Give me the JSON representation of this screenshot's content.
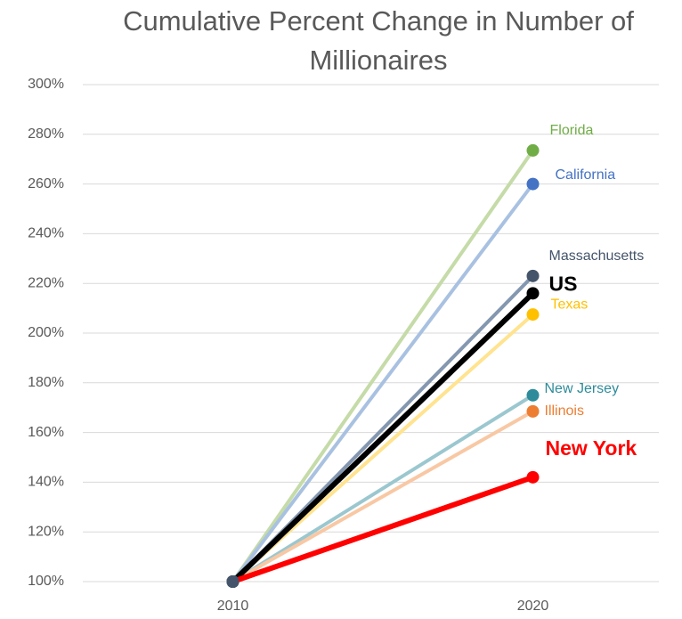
{
  "chart_data": {
    "type": "line",
    "title": "Cumulative Percent Change in Number of Millionaires",
    "categories": [
      "2010",
      "2020"
    ],
    "ylim": [
      100,
      300
    ],
    "yticks": [
      {
        "value": 100,
        "label": "100%"
      },
      {
        "value": 120,
        "label": "120%"
      },
      {
        "value": 140,
        "label": "140%"
      },
      {
        "value": 160,
        "label": "160%"
      },
      {
        "value": 180,
        "label": "180%"
      },
      {
        "value": 200,
        "label": "200%"
      },
      {
        "value": 220,
        "label": "220%"
      },
      {
        "value": 240,
        "label": "240%"
      },
      {
        "value": 260,
        "label": "260%"
      },
      {
        "value": 280,
        "label": "280%"
      },
      {
        "value": 300,
        "label": "300%"
      }
    ],
    "grid": true,
    "series": [
      {
        "name": "Florida",
        "color": "#c5dba8",
        "marker_color": "#70ad47",
        "values": [
          100,
          273.5
        ]
      },
      {
        "name": "California",
        "color": "#a9c1e1",
        "marker_color": "#4472c4",
        "values": [
          100,
          260
        ]
      },
      {
        "name": "Texas",
        "color": "#ffe38f",
        "marker_color": "#ffc000",
        "values": [
          100,
          207.5
        ]
      },
      {
        "name": "New Jersey",
        "color": "#9bc7cf",
        "marker_color": "#2e8b9a",
        "values": [
          100,
          175
        ]
      },
      {
        "name": "Illinois",
        "color": "#f8c8a4",
        "marker_color": "#ed7d31",
        "values": [
          100,
          168.5
        ]
      },
      {
        "name": "Massachusetts",
        "color": "#8497b0",
        "marker_color": "#44546a",
        "values": [
          100,
          223
        ]
      },
      {
        "name": "US",
        "color": "#000000",
        "marker_color": "#000000",
        "values": [
          100,
          216
        ]
      },
      {
        "name": "New York",
        "color": "#ff0000",
        "marker_color": "#ff0000",
        "values": [
          100,
          142
        ]
      }
    ]
  }
}
